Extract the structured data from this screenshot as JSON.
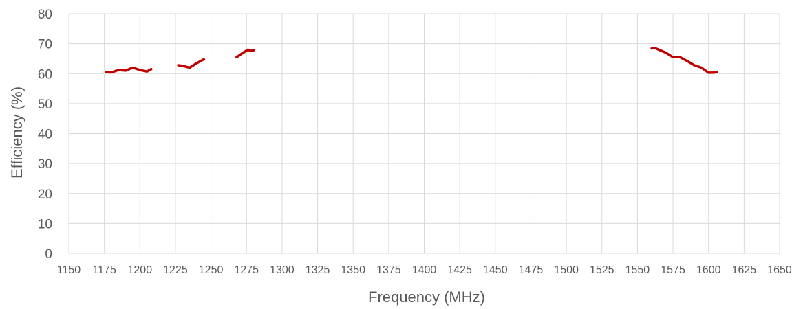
{
  "chart_data": {
    "type": "line",
    "title": "",
    "xlabel": "Frequency (MHz)",
    "ylabel": "Efficiency (%)",
    "xlim": [
      1150,
      1650
    ],
    "ylim": [
      0,
      80
    ],
    "x_ticks": [
      "1150",
      "1175",
      "1200",
      "1225",
      "1250",
      "1275",
      "1300",
      "1325",
      "1350",
      "1375",
      "1400",
      "1425",
      "1450",
      "1475",
      "1500",
      "1525",
      "1550",
      "1575",
      "1600",
      "1625",
      "1650"
    ],
    "y_ticks": [
      "0",
      "10",
      "20",
      "30",
      "40",
      "50",
      "60",
      "70",
      "80"
    ],
    "grid": true,
    "legend": "none",
    "series_color": "#c00000",
    "segments": [
      {
        "x": [
          1176,
          1180,
          1185,
          1190,
          1195,
          1200,
          1205,
          1208
        ],
        "y": [
          60.5,
          60.4,
          61.2,
          61.0,
          62.0,
          61.2,
          60.7,
          61.5
        ]
      },
      {
        "x": [
          1227,
          1230,
          1235,
          1240,
          1245
        ],
        "y": [
          62.8,
          62.6,
          62.0,
          63.5,
          64.8
        ]
      },
      {
        "x": [
          1268,
          1272,
          1276,
          1278,
          1280
        ],
        "y": [
          65.5,
          66.8,
          68.0,
          67.6,
          67.8
        ]
      },
      {
        "x": [
          1560,
          1562,
          1565,
          1570,
          1575,
          1580,
          1585,
          1590,
          1595,
          1600,
          1603,
          1606
        ],
        "y": [
          68.4,
          68.6,
          68.0,
          67.0,
          65.5,
          65.5,
          64.2,
          62.8,
          62.0,
          60.3,
          60.3,
          60.5
        ]
      }
    ]
  }
}
